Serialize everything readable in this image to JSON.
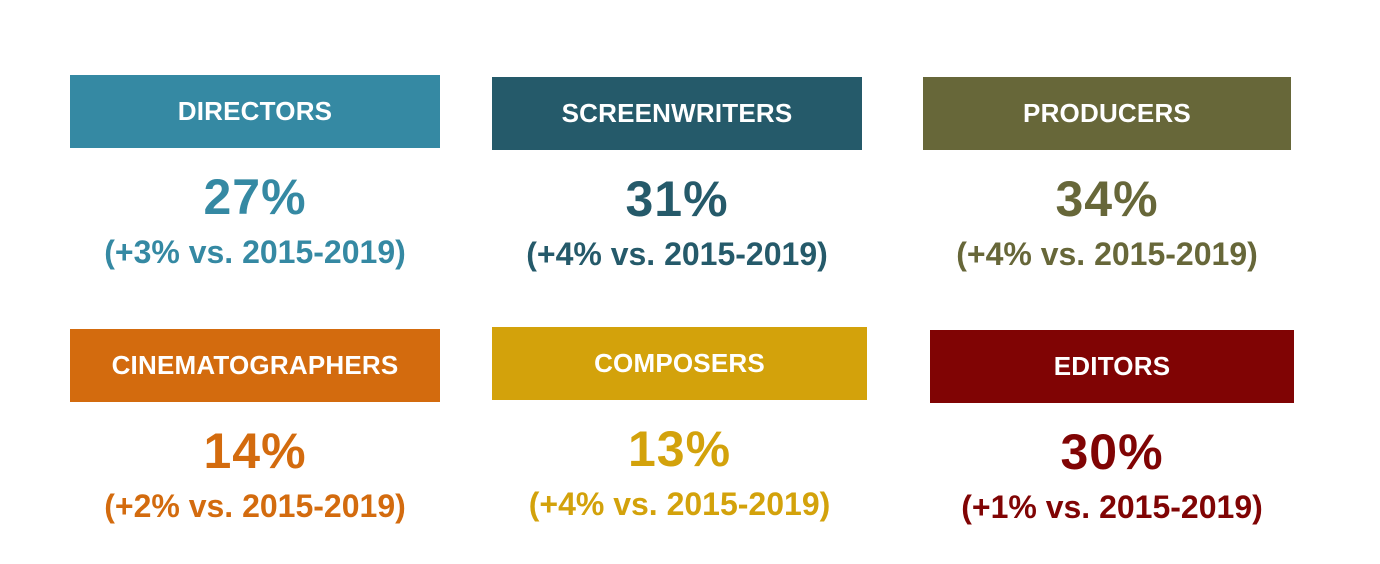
{
  "cards": [
    {
      "label": "DIRECTORS",
      "percent": "27%",
      "change": "(+3% vs. 2015-2019)",
      "color": "#3589a3"
    },
    {
      "label": "SCREENWRITERS",
      "percent": "31%",
      "change": "(+4% vs. 2015-2019)",
      "color": "#255a6a"
    },
    {
      "label": "PRODUCERS",
      "percent": "34%",
      "change": "(+4% vs. 2015-2019)",
      "color": "#676739"
    },
    {
      "label": "CINEMATOGRAPHERS",
      "percent": "14%",
      "change": "(+2% vs. 2015-2019)",
      "color": "#d36b0e"
    },
    {
      "label": "COMPOSERS",
      "percent": "13%",
      "change": "(+4% vs. 2015-2019)",
      "color": "#d3a20b"
    },
    {
      "label": "EDITORS",
      "percent": "30%",
      "change": "(+1% vs. 2015-2019)",
      "color": "#800404"
    }
  ]
}
